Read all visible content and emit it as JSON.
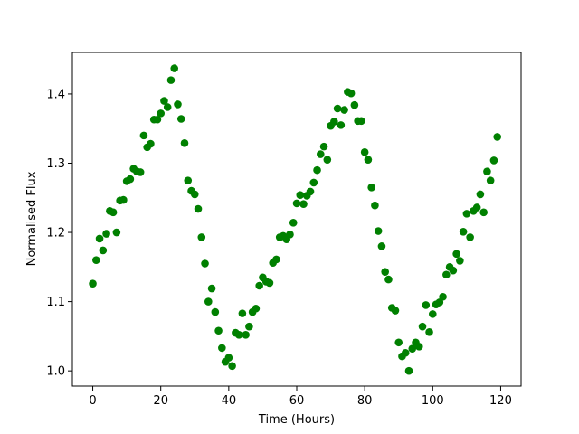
{
  "chart_data": {
    "type": "scatter",
    "title": "",
    "xlabel": "Time (Hours)",
    "ylabel": "Normalised Flux",
    "xlim": [
      -6.0,
      126.0
    ],
    "ylim": [
      0.978,
      1.46
    ],
    "xticks": [
      0,
      20,
      40,
      60,
      80,
      100,
      120
    ],
    "yticks": [
      1.0,
      1.1,
      1.2,
      1.3,
      1.4
    ],
    "xtick_labels": [
      "0",
      "20",
      "40",
      "60",
      "80",
      "100",
      "120"
    ],
    "ytick_labels": [
      "1.0",
      "1.1",
      "1.2",
      "1.3",
      "1.4"
    ],
    "grid": false,
    "legend": false,
    "marker_color": "#008000",
    "series": [
      {
        "x": [
          0,
          1,
          2,
          3,
          4,
          5,
          6,
          7,
          8,
          9,
          10,
          11,
          12,
          13,
          14,
          15,
          16,
          17,
          18,
          19,
          20,
          21,
          22,
          23,
          24,
          25,
          26,
          27,
          28,
          29,
          30,
          31,
          32,
          33,
          34,
          35,
          36,
          37,
          38,
          39,
          40,
          41,
          42,
          43,
          44,
          45,
          46,
          47,
          48,
          49,
          50,
          51,
          52,
          53,
          54,
          55,
          56,
          57,
          58,
          59,
          60,
          61,
          62,
          63,
          64,
          65,
          66,
          67,
          68,
          69,
          70,
          71,
          72,
          73,
          74,
          75,
          76,
          77,
          78,
          79,
          80,
          81,
          82,
          83,
          84,
          85,
          86,
          87,
          88,
          89,
          90,
          91,
          92,
          93,
          94,
          95,
          96,
          97,
          98,
          99,
          100,
          101,
          102,
          103,
          104,
          105,
          106,
          107,
          108,
          109,
          110,
          111,
          112,
          113,
          114,
          115,
          116,
          117,
          118,
          119
        ],
        "y": [
          1.126,
          1.16,
          1.191,
          1.174,
          1.198,
          1.231,
          1.229,
          1.2,
          1.246,
          1.247,
          1.274,
          1.277,
          1.292,
          1.288,
          1.287,
          1.34,
          1.323,
          1.328,
          1.363,
          1.363,
          1.372,
          1.39,
          1.381,
          1.42,
          1.437,
          1.385,
          1.364,
          1.329,
          1.275,
          1.26,
          1.255,
          1.234,
          1.193,
          1.155,
          1.1,
          1.119,
          1.085,
          1.058,
          1.033,
          1.013,
          1.019,
          1.007,
          1.055,
          1.052,
          1.083,
          1.052,
          1.064,
          1.085,
          1.09,
          1.123,
          1.135,
          1.129,
          1.127,
          1.156,
          1.161,
          1.193,
          1.195,
          1.19,
          1.197,
          1.214,
          1.242,
          1.254,
          1.241,
          1.253,
          1.259,
          1.272,
          1.29,
          1.313,
          1.324,
          1.305,
          1.354,
          1.36,
          1.379,
          1.355,
          1.377,
          1.403,
          1.401,
          1.384,
          1.361,
          1.361,
          1.316,
          1.305,
          1.265,
          1.239,
          1.202,
          1.18,
          1.143,
          1.132,
          1.091,
          1.087,
          1.041,
          1.021,
          1.026,
          1.0,
          1.032,
          1.041,
          1.035,
          1.064,
          1.095,
          1.056,
          1.082,
          1.096,
          1.099,
          1.107,
          1.139,
          1.15,
          1.145,
          1.169,
          1.159,
          1.201,
          1.227,
          1.193,
          1.231,
          1.236,
          1.255,
          1.229,
          1.288,
          1.275,
          1.304,
          1.338
        ]
      }
    ]
  }
}
